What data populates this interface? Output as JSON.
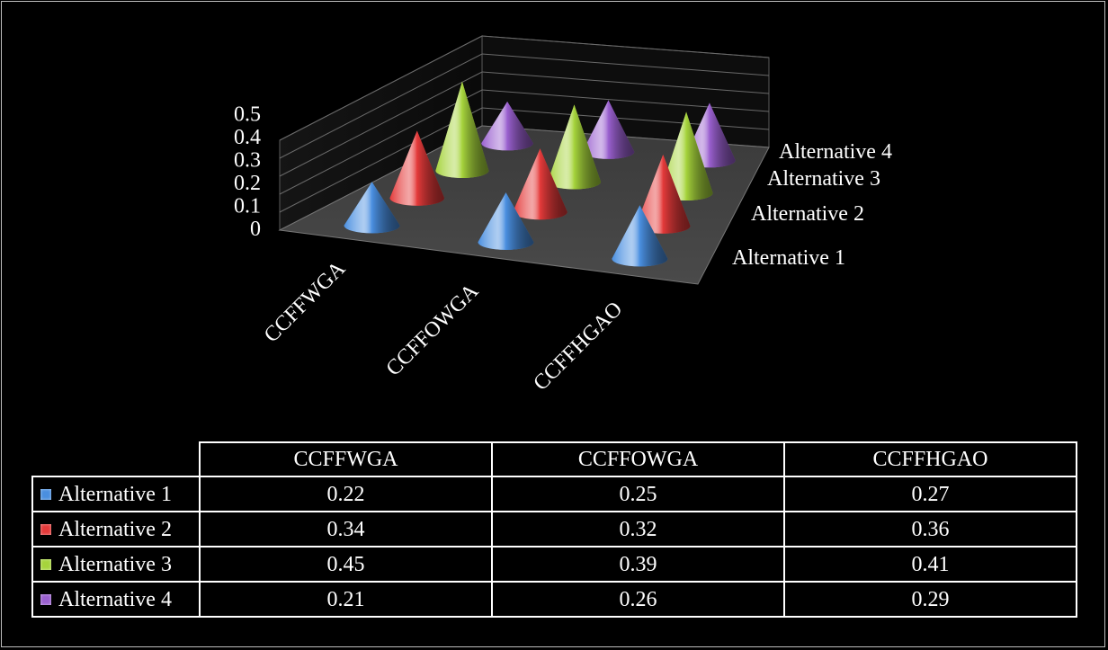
{
  "chart_data": {
    "type": "bar",
    "subtype": "3d-cone",
    "categories": [
      "CCFFWGA",
      "CCFFOWGA",
      "CCFFHGAO"
    ],
    "series": [
      {
        "name": "Alternative 1",
        "color": "#4a8fe0",
        "values": [
          0.22,
          0.25,
          0.27
        ]
      },
      {
        "name": "Alternative 2",
        "color": "#e43a3a",
        "values": [
          0.34,
          0.32,
          0.36
        ]
      },
      {
        "name": "Alternative 3",
        "color": "#a6d43c",
        "values": [
          0.45,
          0.39,
          0.41
        ]
      },
      {
        "name": "Alternative 4",
        "color": "#9a60cf",
        "values": [
          0.21,
          0.26,
          0.29
        ]
      }
    ],
    "yticks": [
      "0",
      "0.1",
      "0.2",
      "0.3",
      "0.4",
      "0.5"
    ],
    "ylim": [
      0,
      0.5
    ],
    "grid": true,
    "legend": "data-table-below",
    "title": "",
    "xlabel": "",
    "ylabel": ""
  },
  "table": {
    "headers": [
      "CCFFWGA",
      "CCFFOWGA",
      "CCFFHGAO"
    ],
    "rows": [
      {
        "label": "Alternative 1",
        "values": [
          "0.22",
          "0.25",
          "0.27"
        ]
      },
      {
        "label": "Alternative 2",
        "values": [
          "0.34",
          "0.32",
          "0.36"
        ]
      },
      {
        "label": "Alternative 3",
        "values": [
          "0.45",
          "0.39",
          "0.41"
        ]
      },
      {
        "label": "Alternative 4",
        "values": [
          "0.21",
          "0.26",
          "0.29"
        ]
      }
    ]
  }
}
